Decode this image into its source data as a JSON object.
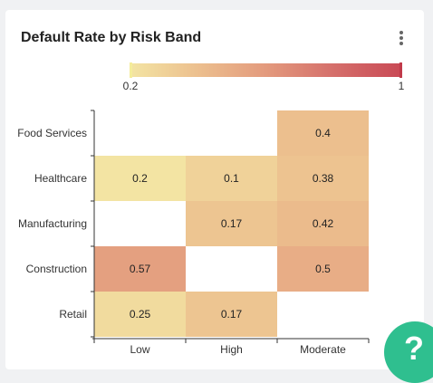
{
  "card": {
    "title": "Default Rate by Risk Band",
    "menu_icon": "kebab-menu-icon"
  },
  "help": {
    "label": "?",
    "icon": "question-icon",
    "color": "#2fbf8f"
  },
  "chart_data": {
    "type": "heatmap",
    "title": "Default Rate by Risk Band",
    "x_categories": [
      "Low",
      "High",
      "Moderate"
    ],
    "y_categories": [
      "Food Services",
      "Healthcare",
      "Manufacturing",
      "Construction",
      "Retail"
    ],
    "cells": [
      {
        "y": "Food Services",
        "x": "Moderate",
        "value": 0.4
      },
      {
        "y": "Healthcare",
        "x": "Low",
        "value": 0.2
      },
      {
        "y": "Healthcare",
        "x": "High",
        "value": 0.1
      },
      {
        "y": "Healthcare",
        "x": "Moderate",
        "value": 0.38
      },
      {
        "y": "Manufacturing",
        "x": "High",
        "value": 0.17
      },
      {
        "y": "Manufacturing",
        "x": "Moderate",
        "value": 0.42
      },
      {
        "y": "Construction",
        "x": "Low",
        "value": 0.57
      },
      {
        "y": "Construction",
        "x": "Moderate",
        "value": 0.5
      },
      {
        "y": "Retail",
        "x": "Low",
        "value": 0.25
      },
      {
        "y": "Retail",
        "x": "High",
        "value": 0.17
      }
    ],
    "legend": {
      "min_label": "0.2",
      "max_label": "1",
      "colors": [
        "#f3e4a3",
        "#ecbf8e",
        "#e39a7d",
        "#d56f6b",
        "#c94955"
      ]
    },
    "cell_label_color": "#222222",
    "grid": false
  }
}
